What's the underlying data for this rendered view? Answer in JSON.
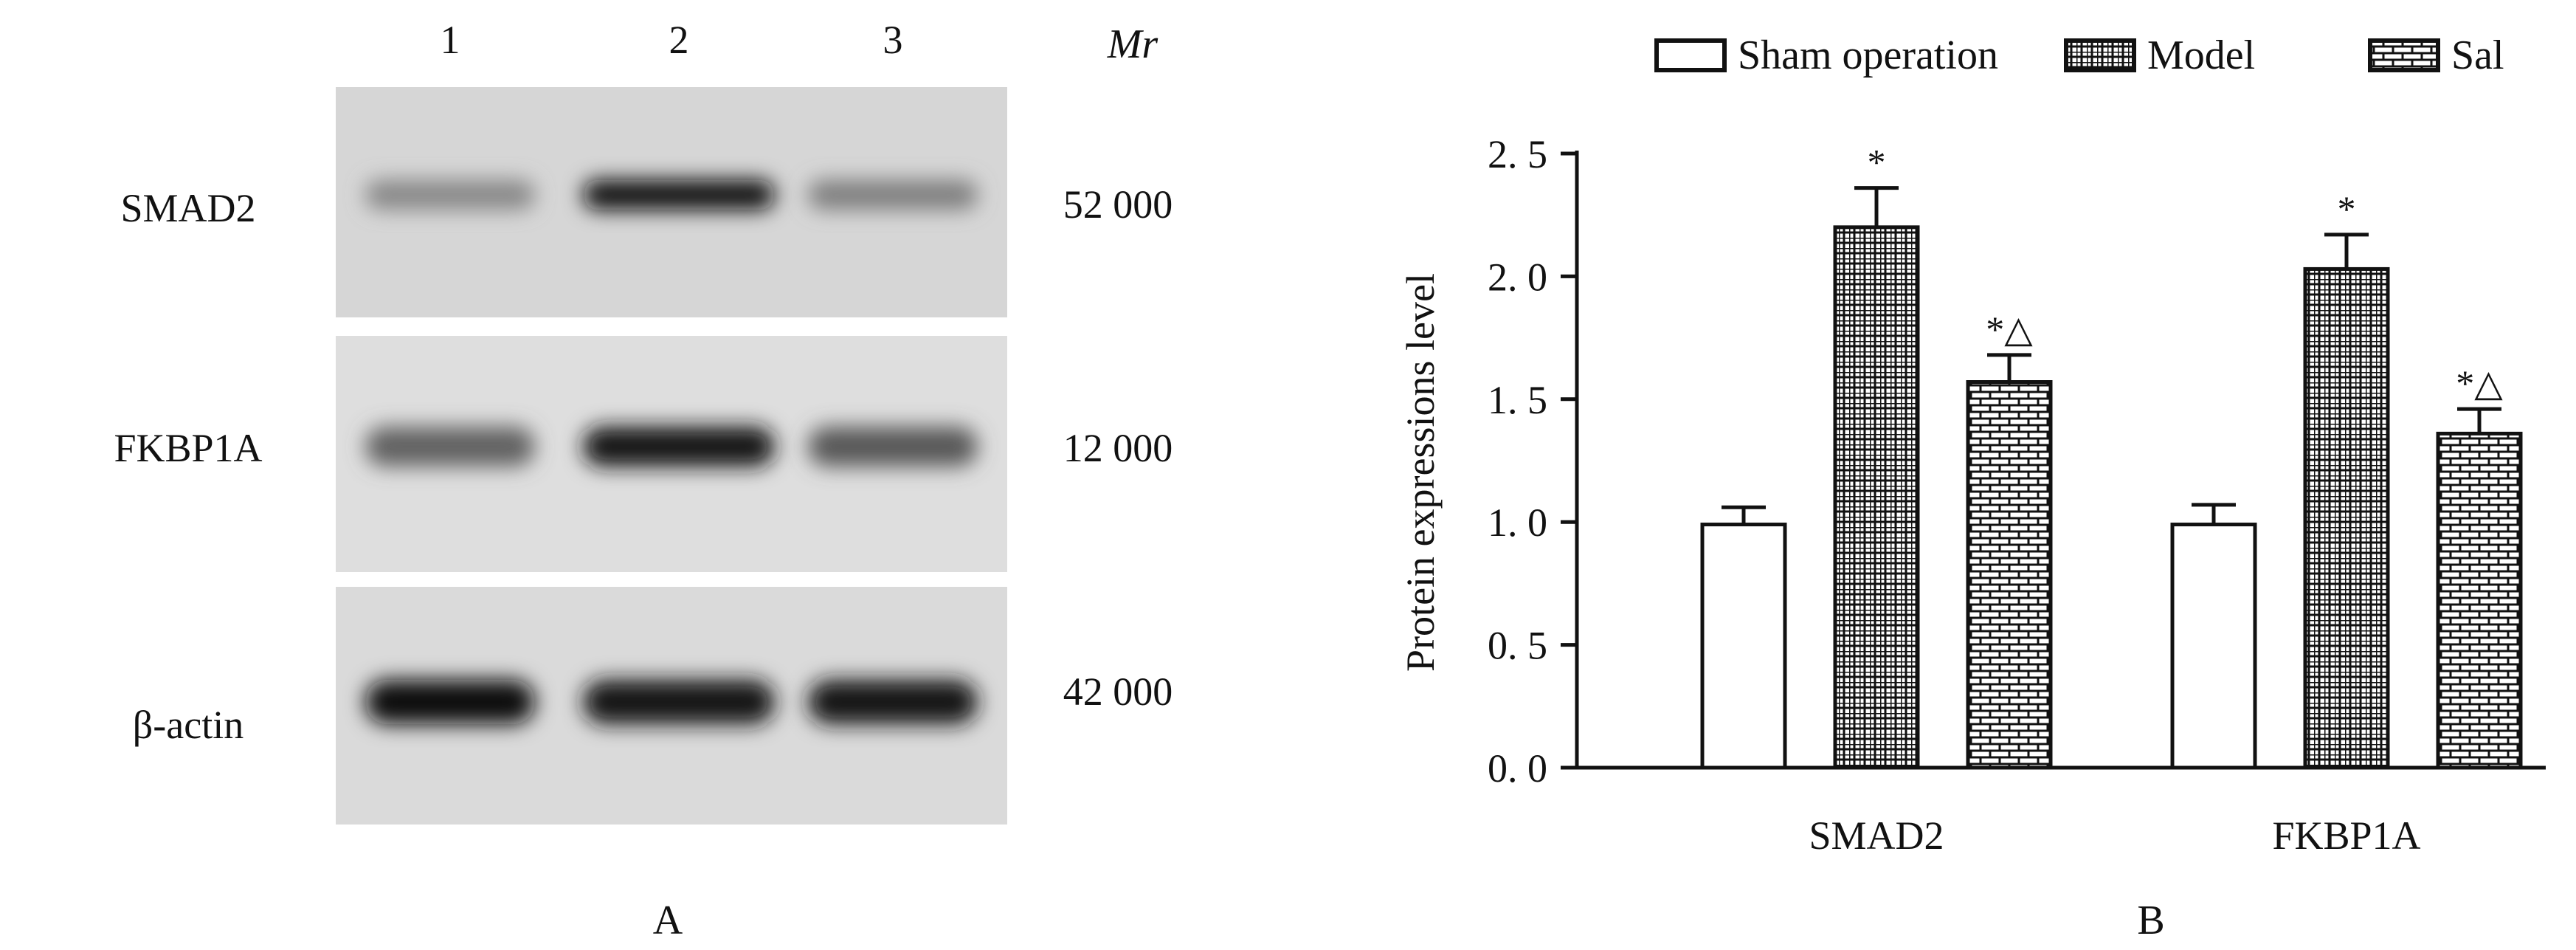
{
  "panel_a": {
    "label": "A",
    "lane_numbers": [
      "1",
      "2",
      "3"
    ],
    "mr_header": "Mr",
    "rows": [
      {
        "protein": "SMAD2",
        "mr": "52 000",
        "band_intensity": [
          0.35,
          1.0,
          0.4
        ]
      },
      {
        "protein": "FKBP1A",
        "mr": "12 000",
        "band_intensity": [
          0.55,
          0.95,
          0.6
        ]
      },
      {
        "protein": "β-actin",
        "mr": "42 000",
        "band_intensity": [
          1.0,
          0.95,
          0.95
        ]
      }
    ]
  },
  "chart_data": {
    "type": "bar",
    "panel_label": "B",
    "title": "",
    "ylabel": "Protein expressions level",
    "xlabel": "",
    "ylim": [
      0,
      2.5
    ],
    "yticks": [
      "0. 0",
      "0. 5",
      "1. 0",
      "1. 5",
      "2. 0",
      "2. 5"
    ],
    "ytick_values": [
      0,
      0.5,
      1.0,
      1.5,
      2.0,
      2.5
    ],
    "categories": [
      "SMAD2",
      "FKBP1A"
    ],
    "legend_placement": "top",
    "series": [
      {
        "name": "Sham operation",
        "pattern": "plain",
        "values": [
          0.99,
          0.99
        ],
        "errors": [
          0.07,
          0.08
        ],
        "annotations": [
          "",
          ""
        ]
      },
      {
        "name": "Model",
        "pattern": "grid",
        "values": [
          2.2,
          2.03
        ],
        "errors": [
          0.16,
          0.14
        ],
        "annotations": [
          "*",
          "*"
        ]
      },
      {
        "name": "Sal",
        "pattern": "brick",
        "values": [
          1.57,
          1.36
        ],
        "errors": [
          0.11,
          0.1
        ],
        "annotations": [
          "*△",
          "*△"
        ]
      }
    ]
  }
}
